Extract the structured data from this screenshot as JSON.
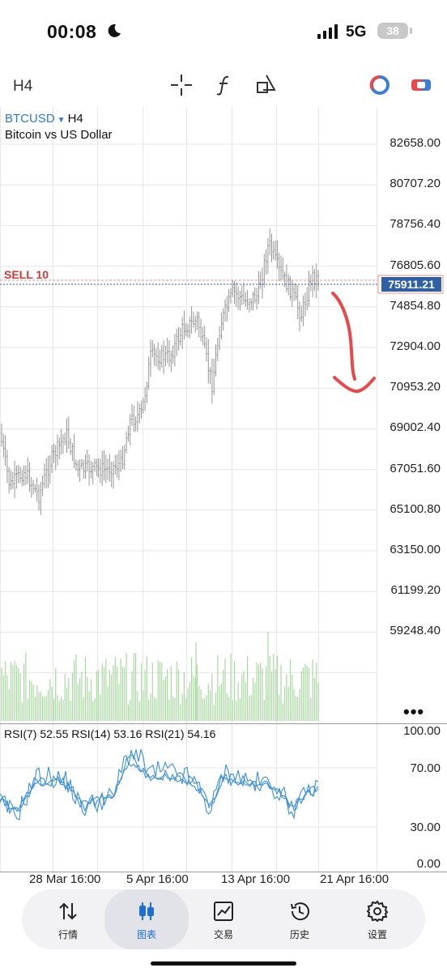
{
  "status_bar": {
    "time": "00:08",
    "network": "5G",
    "battery": "38"
  },
  "toolbar": {
    "timeframe": "H4"
  },
  "chart": {
    "symbol": "BTCUSD",
    "timeframe": "H4",
    "description": "Bitcoin vs US Dollar",
    "price_axis": [
      "82658.00",
      "80707.20",
      "78756.40",
      "76805.60",
      "74854.80",
      "72904.00",
      "70953.20",
      "69002.40",
      "67051.60",
      "65100.80",
      "63150.00",
      "61199.20",
      "59248.40"
    ],
    "current_price": "75911.21",
    "order_label": "SELL 10",
    "rsi_title": "RSI(7) 52.55 RSI(14) 53.16 RSI(21) 54.16",
    "rsi_axis": [
      "100.00",
      "70.00",
      "30.00",
      "0.00"
    ],
    "date_axis": [
      "28 Mar 16:00",
      "5 Apr 16:00",
      "13 Apr 16:00",
      "21 Apr 16:00"
    ]
  },
  "colors": {
    "accent": "#1f6fd1",
    "sell": "#d83535",
    "price_tag": "#2f5fa4",
    "rsi": "#3a8fd8",
    "volume": "#a8d8a0",
    "annotation": "#e8484c"
  },
  "nav": [
    {
      "label": "行情",
      "icon": "quotes-arrows-icon"
    },
    {
      "label": "图表",
      "icon": "candlestick-icon",
      "active": true
    },
    {
      "label": "交易",
      "icon": "trade-chart-icon"
    },
    {
      "label": "历史",
      "icon": "history-clock-icon"
    },
    {
      "label": "设置",
      "icon": "gear-icon"
    }
  ]
}
